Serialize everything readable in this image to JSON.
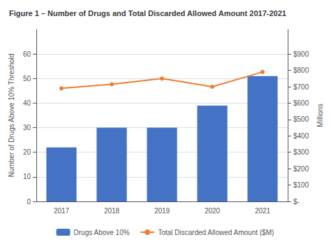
{
  "chart_data": {
    "type": "bar",
    "title": "Figure 1 – Number of Drugs and Total Discarded Allowed Amount 2017-2021",
    "categories": [
      "2017",
      "2018",
      "2019",
      "2020",
      "2021"
    ],
    "series": [
      {
        "name": "Drugs Above 10%",
        "type": "bar",
        "color": "#4472C4",
        "values": [
          22,
          30,
          30,
          39,
          51
        ]
      },
      {
        "name": "Total Discarded Allowed Amount ($M)",
        "type": "line",
        "color": "#ED7D31",
        "marker": "circle",
        "axis": "y2",
        "values": [
          690,
          715,
          750,
          700,
          790
        ]
      }
    ],
    "ylabel": "Number of Drugs Above 10% Threshold",
    "y2label": "Millions",
    "ylim": [
      0,
      70
    ],
    "yticks": [
      0,
      10,
      20,
      30,
      40,
      50,
      60
    ],
    "y2lim": [
      0,
      1050
    ],
    "y2ticks": [
      {
        "value": 0,
        "label": "$-"
      },
      {
        "value": 100,
        "label": "$100"
      },
      {
        "value": 200,
        "label": "$200"
      },
      {
        "value": 300,
        "label": "$300"
      },
      {
        "value": 400,
        "label": "$400"
      },
      {
        "value": 500,
        "label": "$500"
      },
      {
        "value": 600,
        "label": "$600"
      },
      {
        "value": 700,
        "label": "$700"
      },
      {
        "value": 800,
        "label": "$800"
      },
      {
        "value": 900,
        "label": "$900"
      }
    ],
    "grid": true,
    "legend": "bottom"
  }
}
